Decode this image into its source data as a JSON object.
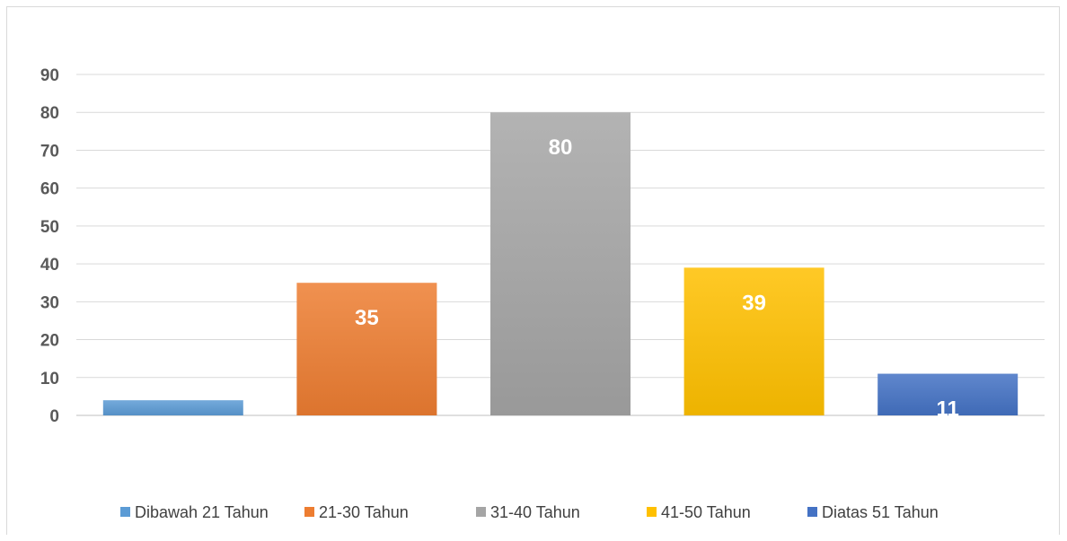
{
  "chart_data": {
    "type": "bar",
    "title": "",
    "xlabel": "",
    "ylabel": "",
    "categories": [
      "Dibawah 21 Tahun",
      "21-30 Tahun",
      "31-40 Tahun",
      "41-50 Tahun",
      "Diatas 51 Tahun"
    ],
    "values": [
      4,
      35,
      80,
      39,
      11
    ],
    "data_labels": [
      "",
      "35",
      "80",
      "39",
      "11"
    ],
    "colors": [
      "#5b9bd5",
      "#ed7d31",
      "#a5a5a5",
      "#ffc000",
      "#4472c4"
    ],
    "ylim": [
      0,
      90
    ],
    "yticks": [
      "0",
      "10",
      "20",
      "30",
      "40",
      "50",
      "60",
      "70",
      "80",
      "90"
    ],
    "grid": true,
    "legend_position": "bottom"
  }
}
